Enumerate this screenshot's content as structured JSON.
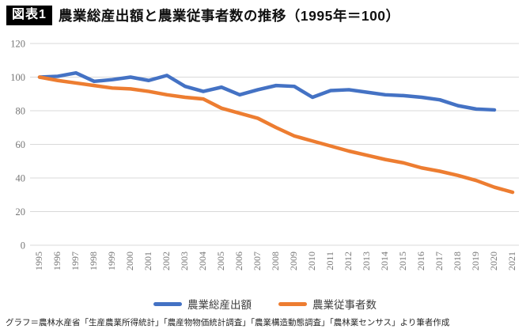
{
  "header": {
    "badge": "図表1",
    "title": "農業総産出額と農業従事者数の推移（1995年＝100）"
  },
  "chart_data": {
    "type": "line",
    "title": "農業総産出額と農業従事者数の推移（1995年＝100）",
    "categories": [
      "1995",
      "1996",
      "1997",
      "1998",
      "1999",
      "2000",
      "2001",
      "2002",
      "2003",
      "2004",
      "2005",
      "2006",
      "2007",
      "2008",
      "2009",
      "2010",
      "2011",
      "2012",
      "2013",
      "2014",
      "2015",
      "2016",
      "2017",
      "2018",
      "2019",
      "2020",
      "2021"
    ],
    "series": [
      {
        "name": "農業総産出額",
        "color": "#4472C4",
        "values": [
          100,
          100.5,
          102.5,
          97.5,
          98.5,
          100,
          98,
          101,
          94.5,
          91.5,
          94,
          89.5,
          92.5,
          95,
          94.5,
          88,
          92,
          92.5,
          91,
          89.5,
          89,
          88,
          86.5,
          83,
          81,
          80.5,
          null
        ]
      },
      {
        "name": "農業従事者数",
        "color": "#ED7D31",
        "values": [
          100,
          98,
          96.5,
          95,
          93.5,
          93,
          91.5,
          89.5,
          88,
          87,
          81.5,
          78.5,
          75.5,
          70,
          65,
          62,
          59,
          56,
          53.5,
          51,
          49,
          46,
          44,
          41.5,
          38.5,
          34.5,
          31.5
        ]
      }
    ],
    "ylim": [
      0,
      120
    ],
    "yticks": [
      0,
      20,
      40,
      60,
      80,
      100,
      120
    ],
    "grid": true,
    "gridline_color": "#D9D9D9",
    "tick_color": "#767676",
    "legend_position": "bottom",
    "xlabel": "",
    "ylabel": ""
  },
  "footer": {
    "source": "グラフ＝農林水産省「生産農業所得統計」「農産物物価統計調査」「農業構造動態調査」「農林業センサス」より筆者作成"
  }
}
